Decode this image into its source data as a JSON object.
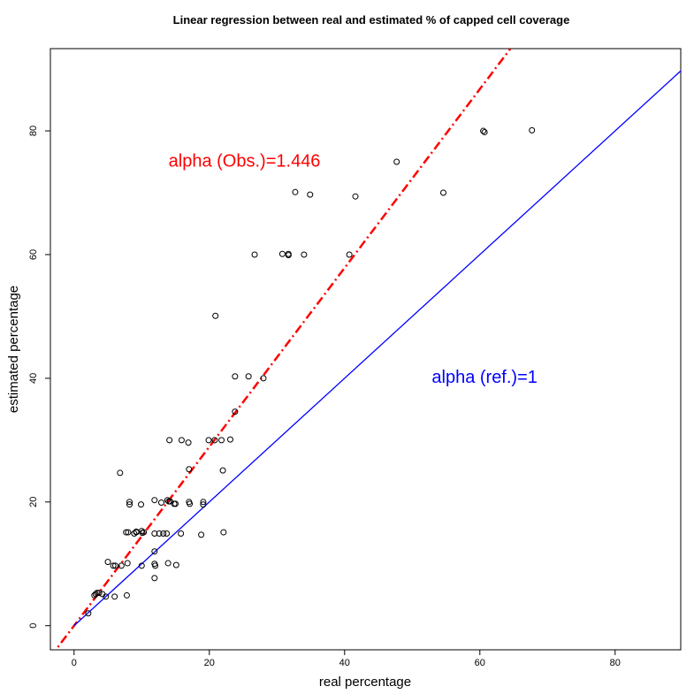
{
  "chart_data": {
    "type": "scatter",
    "title": "Linear regression between real and estimated % of capped cell coverage",
    "x_label": "real percentage",
    "y_label": "estimated percentage",
    "x": [
      60.5,
      60.7,
      67.7,
      47.7,
      32.7,
      34.9,
      41.6,
      54.6,
      26.7,
      30.8,
      31.7,
      31.7,
      34,
      40.7,
      20.9,
      23.8,
      25.8,
      28,
      23.8,
      14.1,
      15.9,
      16.9,
      19.9,
      20.8,
      21.8,
      23.1,
      17,
      22,
      6.8,
      8.2,
      8.2,
      9.9,
      11.9,
      12.9,
      13.8,
      14.2,
      14.8,
      15,
      17,
      17.1,
      19.1,
      19.1,
      7.7,
      8,
      8.9,
      9.2,
      10.1,
      10.3,
      11.9,
      12.6,
      13.2,
      13.7,
      15.8,
      18.8,
      22.1,
      11.9,
      5,
      5.8,
      6.1,
      7,
      7.9,
      10,
      11.9,
      12,
      13.9,
      15.1,
      7.8,
      6,
      4.7,
      11.9,
      3,
      3.2,
      3.4,
      3.7,
      4.2,
      2.1,
      14,
      9.2,
      10
    ],
    "values": [
      80,
      79.8,
      80.1,
      75,
      70.1,
      69.7,
      69.4,
      70,
      60,
      60.1,
      60.1,
      59.9,
      60,
      60,
      50.1,
      40.3,
      40.3,
      40,
      34.6,
      30,
      30,
      29.6,
      30,
      30,
      30,
      30.1,
      25.3,
      25.1,
      24.7,
      20,
      19.6,
      19.6,
      20.3,
      19.9,
      20.3,
      20.1,
      19.7,
      19.7,
      20,
      19.7,
      20,
      19.6,
      15.1,
      15.1,
      14.9,
      15.1,
      15,
      15.1,
      14.9,
      14.9,
      14.9,
      14.9,
      14.9,
      14.7,
      15.1,
      12,
      10.3,
      9.7,
      9.7,
      9.7,
      10.1,
      9.7,
      10,
      9.7,
      10.1,
      9.8,
      4.9,
      4.7,
      4.7,
      7.7,
      4.9,
      5.1,
      5.3,
      5.3,
      5.1,
      2,
      20.1,
      15.2,
      15.3
    ],
    "point_color": "#000000",
    "lines": [
      {
        "color": "#ff0000",
        "dash": "dashdot",
        "x": [
          -3.5,
          64.5
        ],
        "y": [
          -5.06,
          93.27
        ]
      },
      {
        "color": "#0000ff",
        "dash": "solid",
        "x": [
          0,
          90
        ],
        "y": [
          0,
          90
        ]
      }
    ],
    "annotations": [
      {
        "text": "alpha (Obs.)=1.446",
        "x": 25.2,
        "y": 75,
        "color": "#ff0000"
      },
      {
        "text": "alpha (ref.)=1",
        "x": 60.7,
        "y": 40,
        "color": "#0000ff"
      }
    ],
    "xlim": [
      -3.5,
      89.7
    ],
    "ylim": [
      -3.9,
      93.3
    ],
    "xticks": [
      0,
      20,
      40,
      60,
      80
    ],
    "yticks": [
      0,
      20,
      40,
      60,
      80
    ]
  }
}
